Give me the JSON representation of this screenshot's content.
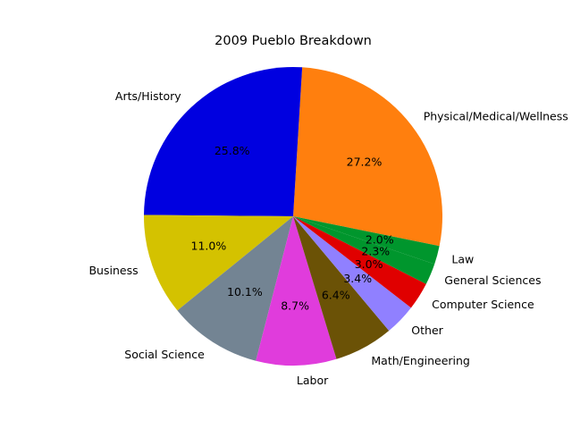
{
  "chart_data": {
    "type": "pie",
    "title": "2009 Pueblo Breakdown",
    "start_angle_deg": -11.5,
    "direction": "counterclockwise",
    "slices": [
      {
        "label": "Physical/Medical/Wellness",
        "value": 27.2,
        "pct_label": "27.2%",
        "color": "#ff7f0e"
      },
      {
        "label": "Arts/History",
        "value": 25.8,
        "pct_label": "25.8%",
        "color": "#0000e0"
      },
      {
        "label": "Business",
        "value": 11.0,
        "pct_label": "11.0%",
        "color": "#d4c200"
      },
      {
        "label": "Social Science",
        "value": 10.1,
        "pct_label": "10.1%",
        "color": "#738493"
      },
      {
        "label": "Labor",
        "value": 8.7,
        "pct_label": "8.7%",
        "color": "#e03cdc"
      },
      {
        "label": "Math/Engineering",
        "value": 6.4,
        "pct_label": "6.4%",
        "color": "#6b5206"
      },
      {
        "label": "Other",
        "value": 3.4,
        "pct_label": "3.4%",
        "color": "#9080ff"
      },
      {
        "label": "Computer Science",
        "value": 3.0,
        "pct_label": "3.0%",
        "color": "#e00000"
      },
      {
        "label": "General Sciences",
        "value": 2.3,
        "pct_label": "2.3%",
        "color": "#00962d"
      },
      {
        "label": "Law",
        "value": 2.0,
        "pct_label": "2.0%",
        "color": "#00962d"
      }
    ]
  }
}
